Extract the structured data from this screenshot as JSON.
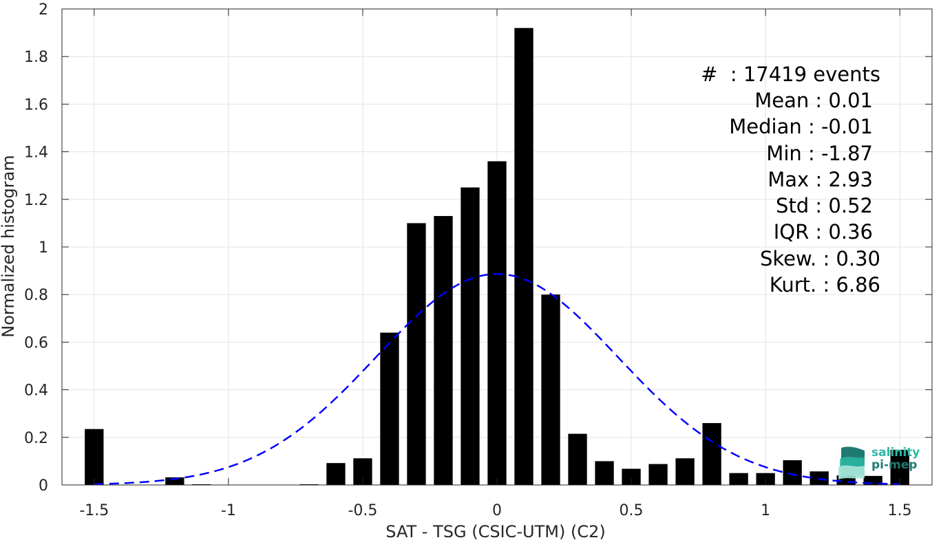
{
  "chart_data": {
    "type": "bar",
    "xlabel": "SAT - TSG (CSIC-UTM) (C2)",
    "ylabel": "Normalized histogram",
    "xlim": [
      -1.62,
      1.62
    ],
    "ylim": [
      0,
      2
    ],
    "xticks": [
      -1.5,
      -1,
      -0.5,
      0,
      0.5,
      1,
      1.5
    ],
    "xtick_labels": [
      "-1.5",
      "-1",
      "-0.5",
      "0",
      "0.5",
      "1",
      "1.5"
    ],
    "yticks": [
      0,
      0.2,
      0.4,
      0.6,
      0.8,
      1,
      1.2,
      1.4,
      1.6,
      1.8,
      2
    ],
    "ytick_labels": [
      "0",
      "0.2",
      "0.4",
      "0.6",
      "0.8",
      "1",
      "1.2",
      "1.4",
      "1.6",
      "1.8",
      "2"
    ],
    "grid": true,
    "bar_width": 0.07,
    "bars": {
      "x": [
        -1.5,
        -1.4,
        -1.3,
        -1.2,
        -1.1,
        -1.0,
        -0.9,
        -0.8,
        -0.7,
        -0.6,
        -0.5,
        -0.4,
        -0.3,
        -0.2,
        -0.1,
        0.0,
        0.1,
        0.2,
        0.3,
        0.4,
        0.5,
        0.6,
        0.7,
        0.8,
        0.9,
        1.0,
        1.1,
        1.2,
        1.3,
        1.4,
        1.5
      ],
      "values": [
        0.235,
        0,
        0,
        0.032,
        0.003,
        0,
        0,
        0,
        0.003,
        0.092,
        0.112,
        0.64,
        1.1,
        1.13,
        1.25,
        1.36,
        1.92,
        0.8,
        0.215,
        0.1,
        0.068,
        0.088,
        0.112,
        0.26,
        0.05,
        0.05,
        0.104,
        0.057,
        0.04,
        0.038,
        0.148
      ],
      "color": "#000000"
    },
    "fit": {
      "type": "normal",
      "mean": 0.0,
      "std": 0.45,
      "color": "#0000ff",
      "style": "dashed",
      "x_range": [
        -1.5,
        1.5
      ]
    }
  },
  "stats": {
    "count_label": "#  : 17419 events",
    "mean_label": "Mean : 0.01",
    "median_label": "Median : -0.01",
    "min_label": "Min : -1.87",
    "max_label": "Max : 2.93",
    "std_label": "Std : 0.52",
    "iqr_label": "IQR : 0.36",
    "skew_label": "Skew. : 0.30",
    "kurt_label": "Kurt. : 6.86"
  },
  "logo": {
    "line1": "salinity",
    "line2": "pi-mep",
    "color_light": "#2bb9a5",
    "color_dark": "#1f7a73"
  }
}
